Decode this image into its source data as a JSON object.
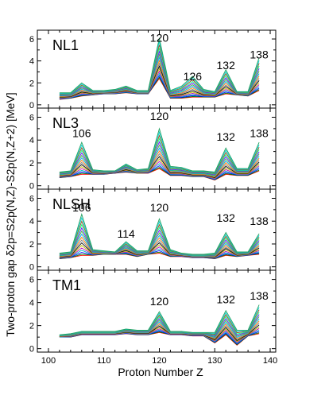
{
  "chart_data": {
    "type": "line",
    "xlabel": "Proton Number Z",
    "ylabel": "Two-proton gap δ2p=S2p(N,Z)-S2p(N,Z+2) [MeV]",
    "xlim": [
      98,
      141
    ],
    "xticks": [
      100,
      110,
      120,
      130,
      140
    ],
    "grid": false,
    "panels": [
      {
        "label": "NL1",
        "ylim": [
          -0.3,
          6.8
        ],
        "yticks": [
          0,
          2,
          4,
          6
        ],
        "peak_labels": [
          {
            "text": "120",
            "z": 120,
            "y": 6.1
          },
          {
            "text": "126",
            "z": 126,
            "y": 2.6
          },
          {
            "text": "132",
            "z": 132,
            "y": 3.6
          },
          {
            "text": "138",
            "z": 138,
            "y": 4.6
          }
        ],
        "z": [
          102,
          104,
          106,
          108,
          110,
          112,
          114,
          116,
          118,
          120,
          122,
          124,
          126,
          128,
          130,
          132,
          134,
          136,
          138
        ],
        "series_min": [
          0.5,
          0.6,
          0.8,
          0.9,
          1.0,
          1.0,
          1.1,
          1.0,
          1.0,
          2.4,
          0.6,
          0.6,
          0.7,
          0.7,
          0.7,
          1.0,
          0.9,
          0.8,
          1.3
        ],
        "series_max": [
          1.1,
          1.1,
          2.0,
          1.3,
          1.3,
          1.4,
          1.7,
          1.3,
          1.3,
          6.1,
          1.3,
          1.7,
          2.6,
          1.4,
          1.2,
          3.2,
          1.2,
          1.2,
          4.3
        ]
      },
      {
        "label": "NL3",
        "ylim": [
          -0.3,
          6.8
        ],
        "yticks": [
          0,
          2,
          4,
          6
        ],
        "peak_labels": [
          {
            "text": "106",
            "z": 106,
            "y": 4.6
          },
          {
            "text": "120",
            "z": 120,
            "y": 6.1
          },
          {
            "text": "132",
            "z": 132,
            "y": 4.3
          },
          {
            "text": "138",
            "z": 138,
            "y": 4.6
          }
        ],
        "z": [
          102,
          104,
          106,
          108,
          110,
          112,
          114,
          116,
          118,
          120,
          122,
          124,
          126,
          128,
          130,
          132,
          134,
          136,
          138
        ],
        "series_min": [
          0.7,
          0.8,
          1.0,
          1.0,
          1.0,
          1.1,
          1.2,
          1.1,
          1.1,
          1.5,
          0.9,
          0.9,
          0.8,
          0.8,
          0.5,
          1.0,
          0.9,
          0.9,
          1.3
        ],
        "series_max": [
          1.2,
          1.3,
          3.8,
          1.4,
          1.3,
          1.3,
          1.9,
          1.4,
          1.5,
          5.0,
          1.7,
          1.6,
          1.3,
          1.3,
          1.2,
          3.3,
          1.5,
          1.5,
          3.8
        ]
      },
      {
        "label": "NLSH",
        "ylim": [
          -0.3,
          6.8
        ],
        "yticks": [
          0,
          2,
          4,
          6
        ],
        "peak_labels": [
          {
            "text": "106",
            "z": 106,
            "y": 5.2
          },
          {
            "text": "114",
            "z": 114,
            "y": 2.9
          },
          {
            "text": "120",
            "z": 120,
            "y": 5.2
          },
          {
            "text": "132",
            "z": 132,
            "y": 4.3
          },
          {
            "text": "138",
            "z": 138,
            "y": 4.0
          }
        ],
        "z": [
          102,
          104,
          106,
          108,
          110,
          112,
          114,
          116,
          118,
          120,
          122,
          124,
          126,
          128,
          130,
          132,
          134,
          136,
          138
        ],
        "series_min": [
          0.7,
          0.8,
          1.0,
          1.0,
          1.1,
          1.1,
          1.1,
          0.9,
          1.1,
          1.2,
          0.9,
          0.9,
          0.8,
          0.8,
          0.7,
          1.0,
          0.9,
          1.0,
          1.1
        ],
        "series_max": [
          1.2,
          1.3,
          4.6,
          1.5,
          1.4,
          1.3,
          2.2,
          1.4,
          1.4,
          4.2,
          1.5,
          1.2,
          1.1,
          1.1,
          1.2,
          3.0,
          1.3,
          1.3,
          2.9
        ]
      },
      {
        "label": "TM1",
        "ylim": [
          -0.3,
          6.8
        ],
        "yticks": [
          0,
          2,
          4,
          6
        ],
        "peak_labels": [
          {
            "text": "120",
            "z": 120,
            "y": 4.1
          },
          {
            "text": "132",
            "z": 132,
            "y": 4.3
          },
          {
            "text": "138",
            "z": 138,
            "y": 4.6
          }
        ],
        "z": [
          102,
          104,
          106,
          108,
          110,
          112,
          114,
          116,
          118,
          120,
          122,
          124,
          126,
          128,
          130,
          132,
          134,
          136,
          138
        ],
        "series_min": [
          1.0,
          1.0,
          1.2,
          1.2,
          1.2,
          1.2,
          1.3,
          1.2,
          1.2,
          1.4,
          1.2,
          1.2,
          1.1,
          1.1,
          0.5,
          1.2,
          0.3,
          1.1,
          1.3
        ],
        "series_max": [
          1.2,
          1.3,
          1.5,
          1.5,
          1.5,
          1.5,
          1.7,
          1.6,
          1.6,
          3.2,
          1.5,
          1.5,
          1.4,
          1.4,
          1.4,
          3.3,
          1.6,
          1.6,
          3.8
        ]
      }
    ],
    "series_colors": [
      "#ff0000",
      "#008000",
      "#0000ff",
      "#00bfbf",
      "#bf00bf",
      "#bfbf00",
      "#000000",
      "#808080",
      "#ff8000",
      "#00a0ff",
      "#40c040",
      "#8000ff",
      "#00ff80",
      "#a05020",
      "#00d0d0",
      "#20a060"
    ]
  }
}
